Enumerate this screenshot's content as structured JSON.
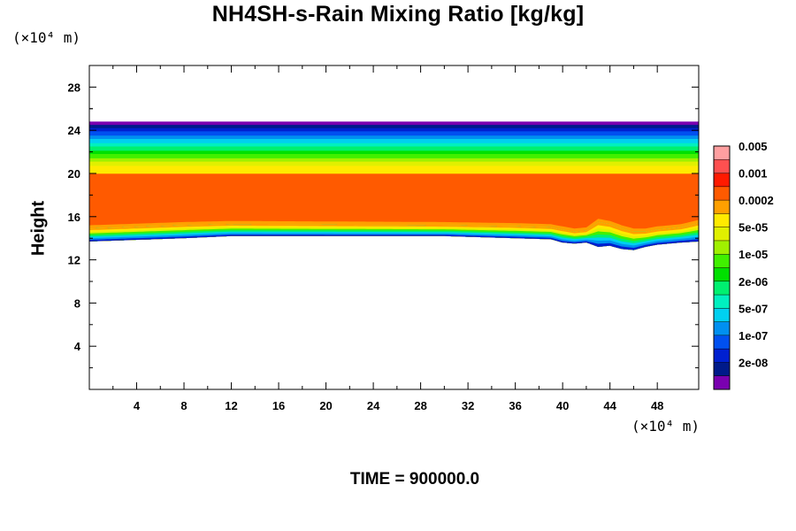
{
  "chart_data": {
    "type": "contour",
    "title": "NH4SH-s-Rain Mixing Ratio [kg/kg]",
    "ylabel": "Height",
    "y_unit_label": "(×10⁴ m)",
    "x_unit_label": "(×10⁴ m)",
    "footer": "TIME = 900000.0",
    "xlim": [
      0,
      51.5
    ],
    "ylim": [
      0,
      30
    ],
    "xticks": [
      4,
      8,
      12,
      16,
      20,
      24,
      28,
      32,
      36,
      40,
      44,
      48
    ],
    "yticks": [
      4,
      8,
      12,
      16,
      20,
      24,
      28
    ],
    "colorbar": {
      "colors": [
        "#7a00b0",
        "#001a8a",
        "#0020d0",
        "#0050f0",
        "#0090f0",
        "#00d0f0",
        "#00f0c0",
        "#00f070",
        "#00e000",
        "#40f000",
        "#a0f000",
        "#e0f000",
        "#ffea00",
        "#ffa000",
        "#ff5a00",
        "#ff1a00",
        "#ff5050",
        "#ff9fa0"
      ],
      "labels": [
        {
          "text": "2e-08",
          "level": 1
        },
        {
          "text": "1e-07",
          "level": 3
        },
        {
          "text": "5e-07",
          "level": 5
        },
        {
          "text": "2e-06",
          "level": 7
        },
        {
          "text": "1e-05",
          "level": 9
        },
        {
          "text": "5e-05",
          "level": 11
        },
        {
          "text": "0.0002",
          "level": 13
        },
        {
          "text": "0.001",
          "level": 15
        },
        {
          "text": "0.005",
          "level": 17
        }
      ]
    },
    "field": {
      "description_levels_bottom_to_top": "layer of mixing ratio between ~13.5 and ~24.8 (×10⁴ m)",
      "lower_edge_profile": {
        "x": [
          0,
          8,
          12,
          30,
          36,
          39,
          40,
          41,
          42,
          43,
          44,
          45,
          46,
          47,
          48,
          50,
          51.5
        ],
        "bottom": [
          13.7,
          14.0,
          14.2,
          14.2,
          14.0,
          13.9,
          13.6,
          13.5,
          13.6,
          13.2,
          13.3,
          13.0,
          12.9,
          13.2,
          13.4,
          13.6,
          13.7
        ],
        "core_bottom": [
          14.9,
          15.2,
          15.3,
          15.2,
          15.1,
          15.0,
          14.8,
          14.6,
          14.7,
          15.5,
          15.3,
          14.9,
          14.6,
          14.6,
          14.8,
          15.0,
          15.4
        ]
      },
      "layers_top_down": [
        {
          "top": 24.8,
          "level": 0
        },
        {
          "top": 24.5,
          "level": 1
        },
        {
          "top": 24.2,
          "level": 2
        },
        {
          "top": 23.9,
          "level": 3
        },
        {
          "top": 23.5,
          "level": 4
        },
        {
          "top": 23.2,
          "level": 5
        },
        {
          "top": 22.8,
          "level": 6
        },
        {
          "top": 22.5,
          "level": 7
        },
        {
          "top": 22.1,
          "level": 8
        },
        {
          "top": 21.8,
          "level": 9
        },
        {
          "top": 21.4,
          "level": 10
        },
        {
          "top": 21.1,
          "level": 11
        },
        {
          "top": 20.7,
          "level": 12
        },
        {
          "top": 20.0,
          "level": 13
        }
      ]
    }
  }
}
